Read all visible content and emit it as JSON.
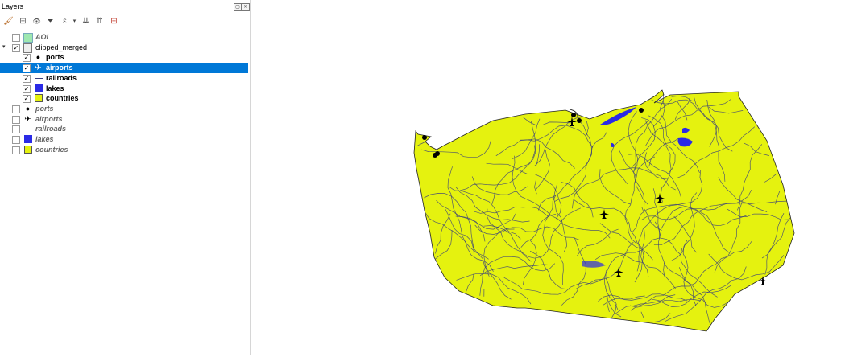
{
  "panel": {
    "title": "Layers",
    "float_btn": "▢",
    "close_btn": "✕"
  },
  "toolbar": [
    {
      "icon": "paint-style-icon",
      "glyph": "🖌"
    },
    {
      "icon": "add-group-icon",
      "glyph": "⊞"
    },
    {
      "icon": "eye-icon",
      "glyph": "👁"
    },
    {
      "icon": "filter-icon",
      "glyph": "⏷"
    },
    {
      "icon": "filter-expression-icon",
      "glyph": "ε"
    },
    {
      "icon": "expand-all-icon",
      "glyph": "⇊"
    },
    {
      "icon": "collapse-all-icon",
      "glyph": "⇈"
    },
    {
      "icon": "remove-layer-icon",
      "glyph": "⊟"
    }
  ],
  "layers": [
    {
      "label": "AOI",
      "checked": false,
      "symbol": "aoi",
      "style": "inactive",
      "indent": 0
    },
    {
      "label": "clipped_merged",
      "checked": true,
      "symbol": "group",
      "style": "group",
      "indent": 0,
      "expanded": true
    },
    {
      "label": "ports",
      "checked": true,
      "symbol": "dot",
      "style": "active",
      "indent": 1
    },
    {
      "label": "airports",
      "checked": true,
      "symbol": "plane",
      "style": "active",
      "indent": 1,
      "selected": true
    },
    {
      "label": "railroads",
      "checked": true,
      "symbol": "line",
      "style": "active",
      "indent": 1
    },
    {
      "label": "lakes",
      "checked": true,
      "symbol": "lake",
      "style": "active",
      "indent": 1
    },
    {
      "label": "countries",
      "checked": true,
      "symbol": "country",
      "style": "active",
      "indent": 1
    },
    {
      "label": "ports",
      "checked": false,
      "symbol": "dot",
      "style": "inactive",
      "indent": 0
    },
    {
      "label": "airports",
      "checked": false,
      "symbol": "plane",
      "style": "inactive",
      "indent": 0
    },
    {
      "label": "railroads",
      "checked": false,
      "symbol": "line-red",
      "style": "inactive",
      "indent": 0
    },
    {
      "label": "lakes",
      "checked": false,
      "symbol": "lake",
      "style": "inactive",
      "indent": 0
    },
    {
      "label": "countries",
      "checked": false,
      "symbol": "country",
      "style": "inactive",
      "indent": 0
    }
  ],
  "colors": {
    "aoi": "#9ee8b0",
    "country_fill": "#e5f20f",
    "lake": "#2a2ae6",
    "rail": "#3a3f7a",
    "rail_red": "#c0392b",
    "selection": "#0078d7"
  },
  "map": {
    "layer": "countries",
    "features": [
      "railroads",
      "lakes",
      "ports",
      "airports"
    ]
  }
}
